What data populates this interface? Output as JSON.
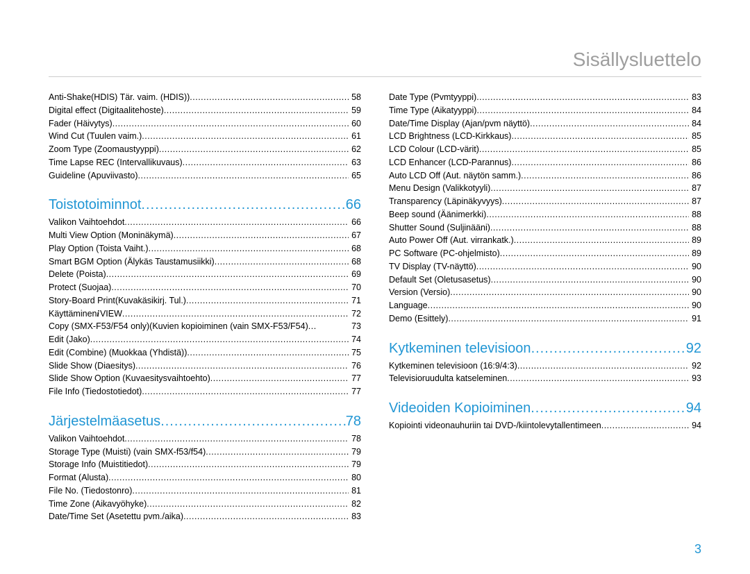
{
  "title": "Sisällysluettelo",
  "page_number": "3",
  "colors": {
    "title_color": "#9e9e9e",
    "accent_color": "#2196d4",
    "text_color": "#000000",
    "rule_color": "#cccccc",
    "background": "#ffffff"
  },
  "typography": {
    "title_fontsize": 28,
    "section_fontsize": 20,
    "entry_fontsize": 12.5,
    "pagenum_fontsize": 18,
    "font_family": "Arial, Helvetica, sans-serif"
  },
  "left": [
    {
      "type": "entry",
      "label": "Anti-Shake(HDIS) Tär. vaim. (HDIS))",
      "page": "58"
    },
    {
      "type": "entry",
      "label": "Digital effect (Digitaalitehoste)",
      "page": "59"
    },
    {
      "type": "entry",
      "label": "Fader (Häivytys)",
      "page": "60"
    },
    {
      "type": "entry",
      "label": "Wind Cut (Tuulen vaim.)",
      "page": "61"
    },
    {
      "type": "entry",
      "label": "Zoom Type (Zoomaustyyppi)",
      "page": "62"
    },
    {
      "type": "entry",
      "label": "Time Lapse REC (Intervallikuvaus)",
      "page": "63"
    },
    {
      "type": "entry",
      "label": "Guideline (Apuviivasto)",
      "page": "65"
    },
    {
      "type": "section",
      "label": "Toistotoiminnot",
      "page": "66"
    },
    {
      "type": "entry",
      "label": "Valikon Vaihtoehdot",
      "page": "66"
    },
    {
      "type": "entry",
      "label": "Multi View Option (Moninäkymä)",
      "page": "67"
    },
    {
      "type": "entry",
      "label": "Play Option (Toista Vaiht.)",
      "page": "68"
    },
    {
      "type": "entry",
      "label": "Smart BGM Option (Älykäs Taustamusiikki)",
      "page": "68"
    },
    {
      "type": "entry",
      "label": "Delete (Poista)",
      "page": "69"
    },
    {
      "type": "entry",
      "label": "Protect (Suojaa)",
      "page": "70"
    },
    {
      "type": "entry",
      "label": "Story-Board Print(Kuvakäsikirj. Tul.)",
      "page": "71"
    },
    {
      "type": "entry",
      "label": "Käyttäminen ",
      "icon": "i",
      "label2": "VIEW",
      "page": "72"
    },
    {
      "type": "entry",
      "label": "Copy (SMX-F53/F54 only)(Kuvien kopioiminen (vain SMX-F53/F54)",
      "page": "73",
      "tight": true
    },
    {
      "type": "entry",
      "label": "Edit (Jako)",
      "page": "74"
    },
    {
      "type": "entry",
      "label": "Edit (Combine) (Muokkaa (Yhdistä))",
      "page": "75"
    },
    {
      "type": "entry",
      "label": "Slide Show (Diaesitys)",
      "page": "76"
    },
    {
      "type": "entry",
      "label": "Slide Show Option (Kuvaesitysvaihtoehto)",
      "page": "77"
    },
    {
      "type": "entry",
      "label": "File Info (Tiedostotiedot)",
      "page": "77"
    },
    {
      "type": "section",
      "label": "Järjestelmäasetus",
      "page": "78"
    },
    {
      "type": "entry",
      "label": "Valikon Vaihtoehdot",
      "page": "78"
    },
    {
      "type": "entry",
      "label": "Storage Type (Muisti) (vain SMX-f53/f54)",
      "page": "79"
    },
    {
      "type": "entry",
      "label": "Storage Info (Muistitiedot)",
      "page": "79"
    },
    {
      "type": "entry",
      "label": "Format (Alusta)",
      "page": "80"
    },
    {
      "type": "entry",
      "label": "File No. (Tiedostonro)",
      "page": "81"
    },
    {
      "type": "entry",
      "label": "Time Zone (Aikavyöhyke)",
      "page": "82"
    },
    {
      "type": "entry",
      "label": "Date/Time Set (Asetettu pvm./aika)",
      "page": "83"
    }
  ],
  "right": [
    {
      "type": "entry",
      "label": "Date Type (Pvmtyyppi)",
      "page": "83"
    },
    {
      "type": "entry",
      "label": "Time Type (Aikatyyppi)",
      "page": "84"
    },
    {
      "type": "entry",
      "label": "Date/Time Display (Ajan/pvm näyttö)",
      "page": "84"
    },
    {
      "type": "entry",
      "label": "LCD Brightness (LCD-Kirkkaus)",
      "page": "85"
    },
    {
      "type": "entry",
      "label": "LCD Colour (LCD-värit)",
      "page": "85"
    },
    {
      "type": "entry",
      "label": "LCD Enhancer (LCD-Parannus)",
      "page": "86"
    },
    {
      "type": "entry",
      "label": "Auto LCD Off (Aut. näytön samm.)",
      "page": "86"
    },
    {
      "type": "entry",
      "label": "Menu Design (Valikkotyyli)",
      "page": "87"
    },
    {
      "type": "entry",
      "label": "Transparency (Läpinäkyvyys)",
      "page": "87"
    },
    {
      "type": "entry",
      "label": "Beep sound (Äänimerkki)",
      "page": "88"
    },
    {
      "type": "entry",
      "label": "Shutter Sound (Suljinääni)",
      "page": "88"
    },
    {
      "type": "entry",
      "label": "Auto Power Off (Aut. virrankatk.)",
      "page": "89"
    },
    {
      "type": "entry",
      "label": "PC Software (PC-ohjelmisto)",
      "page": "89"
    },
    {
      "type": "entry",
      "label": "TV Display (TV-näyttö)",
      "page": "90"
    },
    {
      "type": "entry",
      "label": "Default Set (Oletusasetus)",
      "page": "90"
    },
    {
      "type": "entry",
      "label": "Version (Versio)",
      "page": "90"
    },
    {
      "type": "entry",
      "label": "Language",
      "page": "90"
    },
    {
      "type": "entry",
      "label": "Demo (Esittely)",
      "page": "91"
    },
    {
      "type": "section",
      "label": "Kytkeminen televisioon",
      "page": "92"
    },
    {
      "type": "entry",
      "label": "Kytkeminen televisioon (16:9/4:3)",
      "page": "92"
    },
    {
      "type": "entry",
      "label": "Televisioruudulta katseleminen",
      "page": "93"
    },
    {
      "type": "section",
      "label": "Videoiden Kopioiminen",
      "page": "94"
    },
    {
      "type": "entry",
      "label": "Kopiointi videonauhuriin tai DVD-/kiintolevytallentimeen",
      "page": "94"
    }
  ]
}
